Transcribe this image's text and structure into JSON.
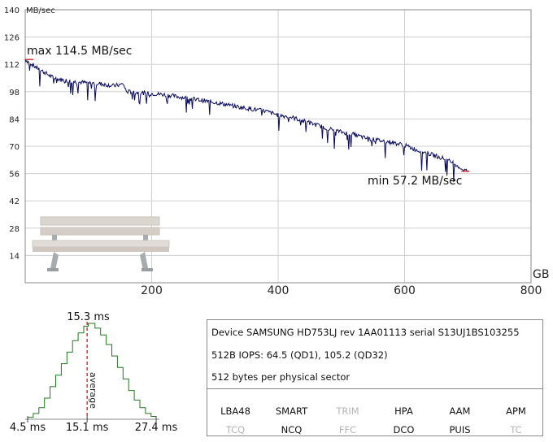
{
  "colors": {
    "series": "#0a0a5a",
    "access_curve": "#1e7a1e",
    "average_line": "#d40000",
    "grid": "#d0d0d0",
    "feature_on": "#111111",
    "feature_off": "#b4b4b4"
  },
  "chart_data": [
    {
      "type": "line",
      "title": "",
      "ylabel": "MB/sec",
      "xlabel": "GB",
      "ylim": [
        0,
        140
      ],
      "xlim": [
        0,
        800
      ],
      "grid": true,
      "y_ticks": [
        14,
        28,
        42,
        56,
        70,
        84,
        98,
        112,
        126,
        140
      ],
      "x_ticks": [
        200,
        400,
        600,
        800
      ],
      "annotations": {
        "max": "max 114.5 MB/sec",
        "min": "min 57.2 MB/sec"
      },
      "max_value": 114.5,
      "min_value": 57.2,
      "series": [
        {
          "x": [
            0,
            15,
            30,
            45,
            60,
            80,
            100,
            120,
            140,
            150,
            155,
            160,
            180,
            200,
            220,
            250,
            300,
            340,
            360,
            380,
            400,
            420,
            450,
            470,
            490,
            520,
            540,
            560,
            580,
            600,
            620,
            640,
            660,
            680,
            690,
            700
          ],
          "values": [
            114.5,
            111,
            108,
            105,
            104,
            103,
            102.5,
            102,
            101,
            101.5,
            102,
            98,
            97.5,
            97,
            96.5,
            95,
            92.5,
            90,
            89,
            88,
            86,
            85,
            82,
            80,
            78,
            76,
            74,
            73,
            72,
            70.5,
            68,
            66,
            64,
            61,
            58.5,
            57.2
          ]
        }
      ],
      "visual": "bench"
    },
    {
      "type": "line",
      "title": "",
      "xlabel": "",
      "ylabel": "",
      "x_tick_labels": [
        "4.5 ms",
        "15.1 ms",
        "27.4 ms"
      ],
      "peak_label": "15.3 ms",
      "average_label": "average",
      "average_value": 15.1,
      "x": [
        4.5,
        5.5,
        6.5,
        7.5,
        8.5,
        9.5,
        10.5,
        11.5,
        12.5,
        13.5,
        14.5,
        15.3,
        16.5,
        17.5,
        18.5,
        19.5,
        20.5,
        21.5,
        22.5,
        23.5,
        24.5,
        25.5,
        26.5,
        27.4
      ],
      "values": [
        2,
        6,
        12,
        22,
        34,
        46,
        58,
        70,
        82,
        90,
        97,
        100,
        95,
        88,
        78,
        66,
        54,
        42,
        30,
        20,
        12,
        6,
        3,
        1
      ]
    }
  ],
  "device_info": {
    "device": "Device SAMSUNG HD753LJ rev 1AA01113 serial S13UJ1BS103255",
    "iops": "512B IOPS: 64.5 (QD1), 105.2 (QD32)",
    "sector": "512 bytes per physical sector"
  },
  "features": {
    "row1": [
      {
        "label": "LBA48",
        "enabled": true
      },
      {
        "label": "SMART",
        "enabled": true
      },
      {
        "label": "TRIM",
        "enabled": false
      },
      {
        "label": "HPA",
        "enabled": true
      },
      {
        "label": "AAM",
        "enabled": true
      },
      {
        "label": "APM",
        "enabled": true
      }
    ],
    "row2": [
      {
        "label": "TCQ",
        "enabled": false
      },
      {
        "label": "NCQ",
        "enabled": true
      },
      {
        "label": "FFC",
        "enabled": false
      },
      {
        "label": "DCO",
        "enabled": true
      },
      {
        "label": "PUIS",
        "enabled": true
      },
      {
        "label": "TC",
        "enabled": false
      }
    ]
  }
}
